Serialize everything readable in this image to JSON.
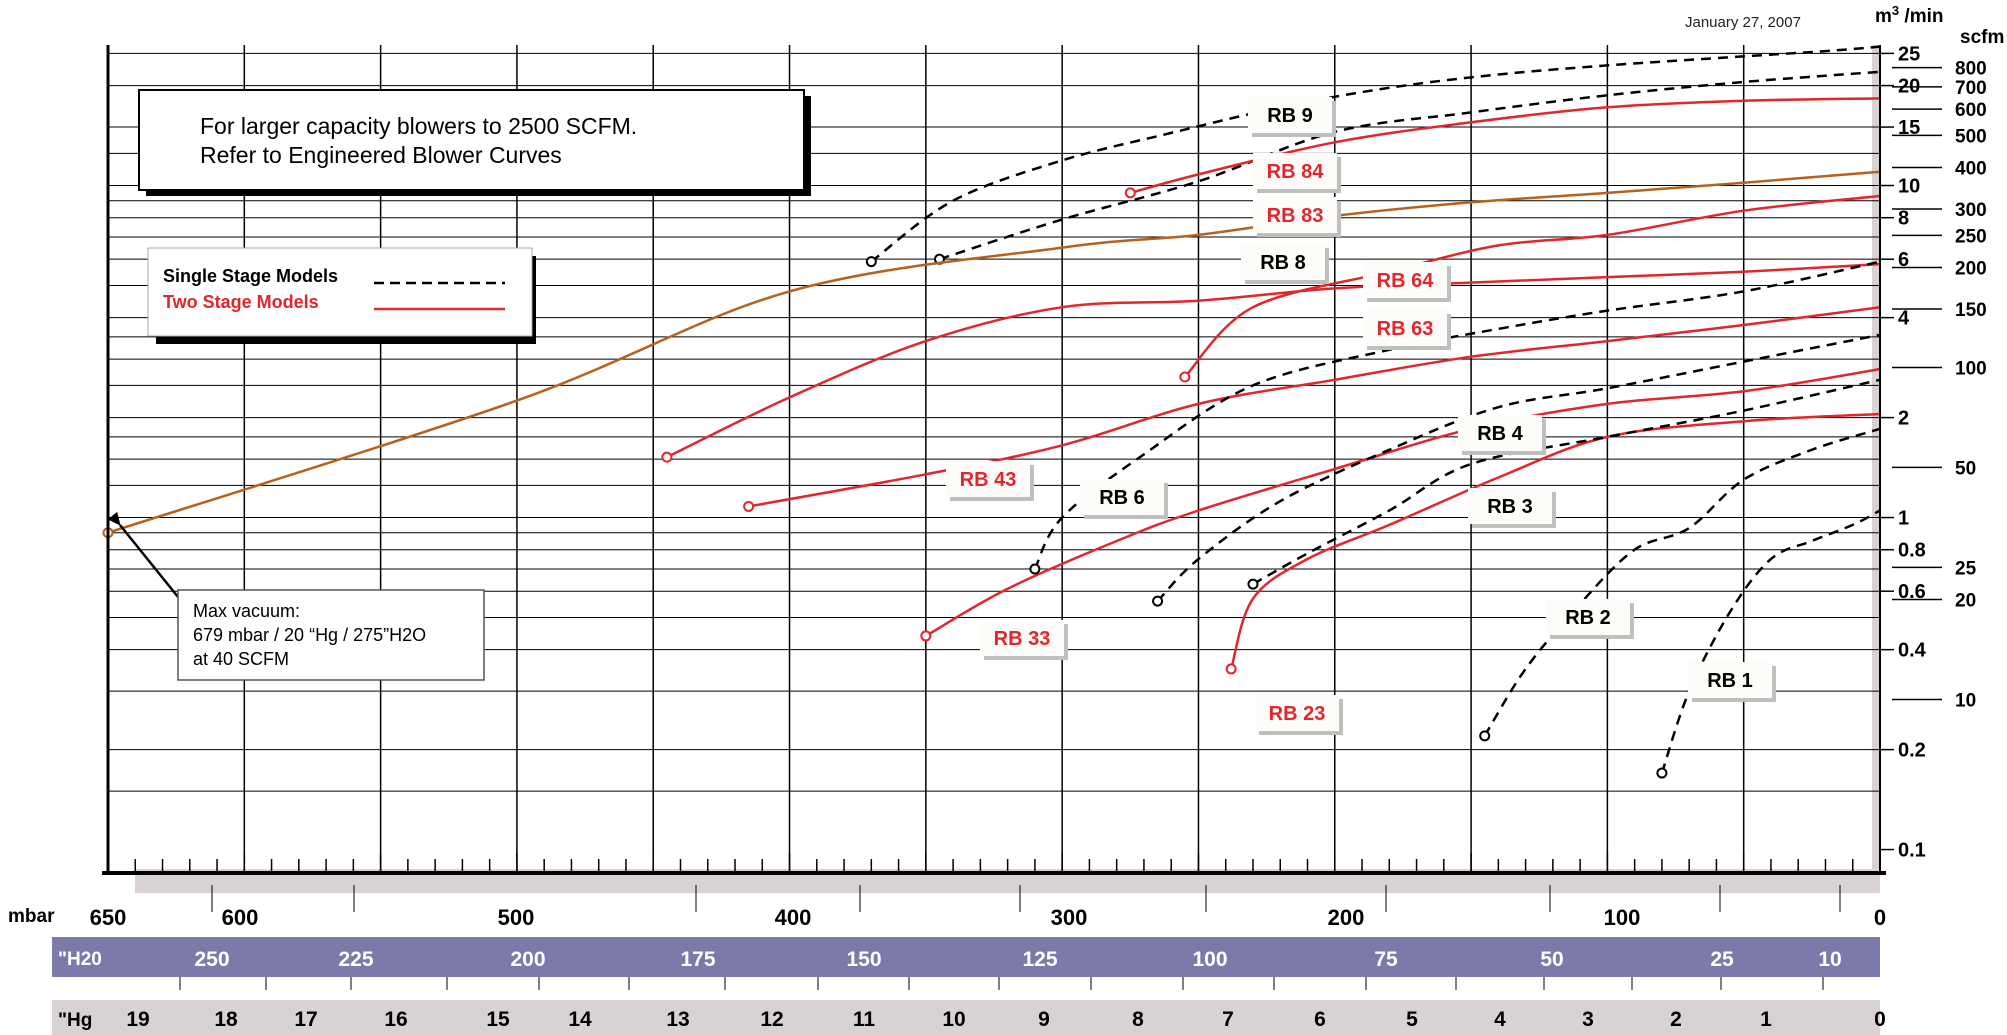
{
  "date": "January 27, 2007",
  "note_box": {
    "line1": "For larger capacity blowers to 2500 SCFM.",
    "line2": "Refer to Engineered Blower Curves"
  },
  "legend": {
    "single": "Single Stage Models",
    "two": "Two Stage Models"
  },
  "annotation": {
    "line1": "Max vacuum:",
    "line2": "679 mbar / 20 “Hg / 275”H2O",
    "line3": "at 40 SCFM"
  },
  "colors": {
    "single": "#000000",
    "two": "#e3262b",
    "engineered": "#b5621e",
    "h2o_band": "#7c7aaa",
    "hg_band": "#d9d2d2"
  },
  "chart_data": {
    "type": "line",
    "x_axis_reversed": true,
    "x_axes": [
      {
        "unit": "mbar",
        "ticks": [
          "650",
          "600",
          "500",
          "400",
          "300",
          "200",
          "100",
          "0"
        ]
      },
      {
        "unit": "\"H20",
        "ticks": [
          "250",
          "225",
          "200",
          "175",
          "150",
          "125",
          "100",
          "75",
          "50",
          "25",
          "10"
        ]
      },
      {
        "unit": "\"Hg",
        "ticks": [
          "19",
          "18",
          "17",
          "16",
          "15",
          "14",
          "13",
          "12",
          "11",
          "10",
          "9",
          "8",
          "7",
          "6",
          "5",
          "4",
          "3",
          "2",
          "1",
          "0"
        ]
      }
    ],
    "y_axes": [
      {
        "unit": "m3 /min",
        "unit_base": "m",
        "unit_sup": "3",
        "unit_rest": " /min",
        "scale": "log",
        "ticks": [
          "25",
          "20",
          "15",
          "10",
          "8",
          "6",
          "4",
          "2",
          "1",
          "0.8",
          "0.6",
          "0.4",
          "0.2",
          "0.1"
        ]
      },
      {
        "unit": "scfm",
        "scale": "log",
        "ticks": [
          "800",
          "700",
          "600",
          "500",
          "400",
          "300",
          "250",
          "200",
          "150",
          "100",
          "50",
          "25",
          "20",
          "10"
        ]
      }
    ],
    "series": [
      {
        "name": "RB 9",
        "style": "single",
        "x": [
          370,
          340,
          300,
          260,
          220,
          180,
          140,
          100,
          60,
          20,
          0
        ],
        "y": [
          5.9,
          9.0,
          11.9,
          14.4,
          17.2,
          19.7,
          21.6,
          23.0,
          24.2,
          25.4,
          26.2
        ]
      },
      {
        "name": "RB 8",
        "style": "single",
        "x": [
          345,
          300,
          250,
          200,
          150,
          100,
          50,
          0
        ],
        "y": [
          6.0,
          7.9,
          10.3,
          14.5,
          16.6,
          18.7,
          20.5,
          22.0
        ]
      },
      {
        "name": "RB 84",
        "style": "two",
        "x": [
          275,
          250,
          200,
          150,
          100,
          50,
          0
        ],
        "y": [
          9.5,
          10.8,
          13.5,
          15.5,
          17.2,
          18.0,
          18.3
        ]
      },
      {
        "name": "RB 83",
        "style": "engineered",
        "x": [
          650,
          500,
          400,
          300,
          250,
          200,
          150,
          100,
          50,
          0
        ],
        "y": [
          0.9,
          2.25,
          4.8,
          6.5,
          7.1,
          8.1,
          8.9,
          9.5,
          10.2,
          11.0
        ]
      },
      {
        "name": "RB 64",
        "style": "two",
        "x": [
          255,
          230,
          180,
          140,
          100,
          50,
          0
        ],
        "y": [
          2.65,
          4.3,
          5.5,
          6.6,
          7.1,
          8.4,
          9.3
        ]
      },
      {
        "name": "RB 63",
        "style": "two",
        "x": [
          445,
          400,
          350,
          300,
          250,
          200,
          150,
          100,
          50,
          0
        ],
        "y": [
          1.52,
          2.3,
          3.4,
          4.3,
          4.5,
          4.9,
          5.1,
          5.3,
          5.5,
          5.8
        ]
      },
      {
        "name": "RB 43",
        "style": "two",
        "x": [
          415,
          350,
          300,
          250,
          200,
          150,
          100,
          50,
          0
        ],
        "y": [
          1.08,
          1.35,
          1.65,
          2.2,
          2.6,
          3.05,
          3.4,
          3.8,
          4.3
        ]
      },
      {
        "name": "RB 33",
        "style": "two",
        "x": [
          350,
          320,
          280,
          250,
          200,
          150,
          100,
          50,
          0
        ],
        "y": [
          0.44,
          0.61,
          0.85,
          1.05,
          1.4,
          1.85,
          2.2,
          2.4,
          2.8
        ]
      },
      {
        "name": "RB 6",
        "style": "single",
        "x": [
          310,
          300,
          270,
          230,
          180,
          140,
          100,
          50,
          0
        ],
        "y": [
          0.7,
          1.0,
          1.55,
          2.5,
          3.2,
          3.7,
          4.2,
          4.8,
          5.9
        ]
      },
      {
        "name": "RB 23",
        "style": "two",
        "x": [
          238,
          230,
          210,
          180,
          140,
          100,
          50,
          0
        ],
        "y": [
          0.35,
          0.57,
          0.75,
          0.95,
          1.32,
          1.75,
          1.95,
          2.05
        ]
      },
      {
        "name": "RB 4",
        "style": "single",
        "x": [
          265,
          250,
          220,
          180,
          140,
          100,
          50,
          0
        ],
        "y": [
          0.56,
          0.75,
          1.12,
          1.6,
          2.15,
          2.45,
          2.95,
          3.55
        ]
      },
      {
        "name": "RB 3",
        "style": "single",
        "x": [
          230,
          210,
          180,
          150,
          100,
          50,
          0
        ],
        "y": [
          0.63,
          0.78,
          1.05,
          1.45,
          1.75,
          2.1,
          2.6
        ]
      },
      {
        "name": "RB 2",
        "style": "single",
        "x": [
          145,
          130,
          110,
          90,
          70,
          50,
          25,
          0
        ],
        "y": [
          0.22,
          0.35,
          0.55,
          0.8,
          0.93,
          1.3,
          1.6,
          1.85
        ]
      },
      {
        "name": "RB 1",
        "style": "single",
        "x": [
          80,
          70,
          55,
          40,
          25,
          10,
          0
        ],
        "y": [
          0.17,
          0.3,
          0.52,
          0.75,
          0.85,
          0.95,
          1.05
        ]
      }
    ]
  }
}
